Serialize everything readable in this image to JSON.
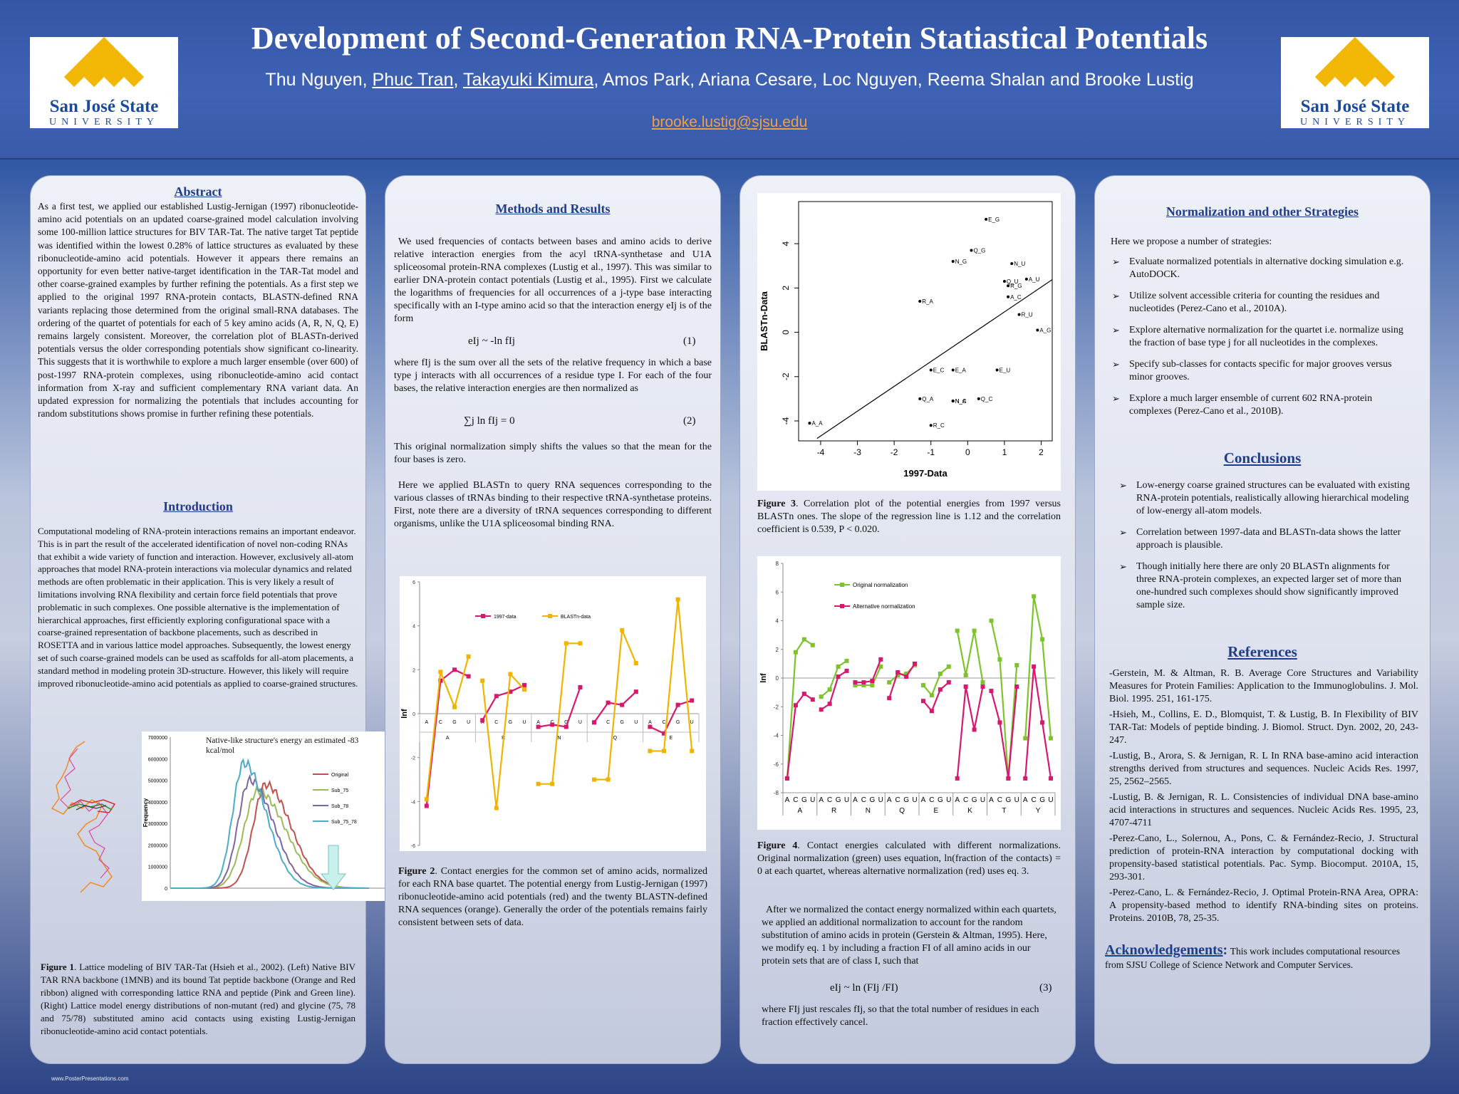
{
  "header": {
    "title": "Development of Second-Generation RNA-Protein Statiastical Potentials",
    "authors": [
      {
        "name": "Thu Nguyen",
        "underline": false
      },
      {
        "name": "Phuc Tran",
        "underline": true
      },
      {
        "name": "Takayuki Kimura",
        "underline": true
      },
      {
        "name": "Amos Park",
        "underline": false
      },
      {
        "name": "Ariana Cesare",
        "underline": false
      },
      {
        "name": "Loc Nguyen",
        "underline": false
      },
      {
        "name": "Reema Shalan and Brooke Lustig",
        "underline": false
      }
    ],
    "email": "brooke.lustig@sjsu.edu",
    "logo_name": "San José State",
    "logo_sub": "UNIVERSITY",
    "brand_color": "#1b4b98",
    "logo_gold": "#f2b705"
  },
  "abstract": {
    "heading": "Abstract",
    "text": "As a first test, we applied our established Lustig-Jernigan (1997) ribonucleotide-amino acid potentials on an updated coarse-grained model calculation involving some 100-million lattice structures for BIV TAR-Tat. The native target Tat peptide was identified within the lowest 0.28% of lattice structures as evaluated by these ribonucleotide-amino acid potentials. However it appears there remains an opportunity for even better native-target identification in the TAR-Tat model and other coarse-grained examples by further refining the potentials. As a first step we applied to the original 1997 RNA-protein contacts, BLASTN-defined RNA variants replacing those determined from the original small-RNA databases. The ordering of the quartet of potentials for each of 5 key amino acids (A, R, N, Q, E) remains largely consistent. Moreover, the correlation plot of BLASTn-derived potentials versus the older corresponding potentials show significant co-linearity. This suggests that it is worthwhile to explore a much larger ensemble (over 600) of post-1997 RNA-protein complexes, using ribonucleotide-amino acid contact information from X-ray and sufficient complementary RNA variant data. An updated expression for normalizing the potentials that includes accounting for random substitutions shows promise in further refining these potentials."
  },
  "introduction": {
    "heading": "Introduction",
    "text": "Computational modeling of RNA-protein interactions remains an important endeavor. This is in part the result of the accelerated identification of novel non-coding RNAs that exhibit a wide variety of function and interaction. However, exclusively all-atom approaches that model RNA-protein interactions via molecular dynamics and related methods are often problematic in their application. This is very likely a result of limitations involving RNA flexibility and certain force field potentials that prove problematic in such complexes. One possible alternative is the implementation of hierarchical approaches, first efficiently exploring configurational space with a coarse-grained representation of backbone placements, such as described in ROSETTA and in various lattice model approaches. Subsequently, the lowest energy set of such coarse-grained models can be used as scaffolds for all-atom placements, a standard method in modeling protein 3D-structure. However, this likely will require improved ribonucleotide-amino acid potentials as applied to coarse-grained structures."
  },
  "figure1": {
    "annotation": "Native-like structure's energy an estimated -83 kcal/mol",
    "ylabel": "Frequency",
    "yticks": [
      "7000000",
      "6000000",
      "5000000",
      "4000000",
      "3000000",
      "2000000",
      "1000000",
      "0"
    ],
    "legend": [
      "Original",
      "Sub_75",
      "Sub_78",
      "Sub_75_78"
    ],
    "legend_colors": [
      "#c0504d",
      "#9bbb59",
      "#8064a2",
      "#4bacc6"
    ],
    "caption_label": "Figure 1",
    "caption": ". Lattice modeling of BIV TAR-Tat (Hsieh et al., 2002). (Left) Native BIV TAR RNA backbone (1MNB) and its bound Tat peptide backbone (Orange and Red ribbon) aligned with corresponding lattice RNA and peptide (Pink and Green line). (Right) Lattice model energy distributions of non-mutant (red) and glycine (75, 78 and 75/78) substituted amino acid contacts using existing Lustig-Jernigan ribonucleotide-amino acid contact potentials."
  },
  "methods": {
    "heading": "Methods and Results",
    "p1": "We used frequencies of contacts between bases and amino acids to derive relative interaction energies from the acyl tRNA-synthetase and U1A spliceosomal protein-RNA complexes (Lustig et al., 1997). This was similar to earlier DNA-protein contact potentials (Lustig et al., 1995). First we calculate the logarithms of frequencies for all occurrences of a j-type base interacting specifically with an I-type amino acid so that the interaction energy eIj is of the form",
    "eq1": "eIj ~ -ln fIj",
    "eq1_num": "(1)",
    "p2": "where fIj is the sum over all the sets of the relative frequency in which a base type j interacts with all occurrences of a residue type I. For each of the four bases, the relative interaction energies are then normalized as",
    "eq2": "∑j ln fIj = 0",
    "eq2_num": "(2)",
    "p3": "This original normalization simply shifts the values so that the mean for the four bases is zero.",
    "p4": "Here we applied BLASTn to query RNA sequences corresponding to the various classes of tRNAs binding to their respective tRNA-synthetase proteins. First, note there are a diversity of tRNA sequences corresponding to different organisms, unlike the U1A spliceosomal binding RNA."
  },
  "figure2": {
    "caption_label": "Figure 2",
    "caption": ". Contact energies for the common set of amino acids, normalized for each RNA base quartet. The potential energy from Lustig-Jernigan (1997) ribonucleotide-amino acid potentials (red) and the twenty BLASTN-defined RNA sequences (orange). Generally the order of the potentials remains fairly consistent between sets of data."
  },
  "figure3": {
    "caption_label": "Figure 3",
    "caption": ". Correlation plot of the potential energies from 1997 versus BLASTn ones. The slope of the regression line is 1.12 and the correlation coefficient is 0.539, P < 0.020."
  },
  "figure4": {
    "caption_label": "Figure 4",
    "caption": ". Contact energies calculated with different normalizations. Original normalization (green) uses equation, ln(fraction of the contacts) = 0 at each quartet, whereas alternative normalization (red) uses eq. 3."
  },
  "methods2": {
    "p1": "After we normalized the contact energy normalized within each quartets, we applied an additional normalization to account for the random substitution of amino acids in protein (Gerstein & Altman, 1995). Here, we modify eq. 1 by including a fraction FI of all amino acids in our protein sets that are of class I, such that",
    "eq3": "eIj ~ ln (FIj /FI)",
    "eq3_num": "(3)",
    "p2": "where FIj just rescales fIj, so that the total number of residues in each fraction effectively cancel."
  },
  "normalization": {
    "heading": "Normalization and other Strategies",
    "intro": "Here we propose a number of strategies:",
    "items": [
      "Evaluate normalized potentials in alternative docking simulation e.g. AutoDOCK.",
      "Utilize solvent accessible criteria for counting the residues and nucleotides (Perez-Cano et al., 2010A).",
      "Explore alternative normalization for the quartet i.e. normalize using the fraction of base type j for all nucleotides in the complexes.",
      "Specify sub-classes for contacts specific for major grooves versus minor grooves.",
      "Explore a much larger ensemble of current 602 RNA-protein complexes (Perez-Cano et al., 2010B)."
    ]
  },
  "conclusions": {
    "heading": "Conclusions",
    "items": [
      "Low-energy coarse grained structures can be evaluated with existing RNA-protein potentials, realistically allowing hierarchical modeling of low-energy all-atom models.",
      "Correlation between 1997-data and BLASTn-data shows the latter approach is plausible.",
      "Though initially here there are only 20 BLASTn alignments for three RNA-protein complexes, an expected larger set of more than one-hundred such complexes should show significantly improved sample size."
    ]
  },
  "references": {
    "heading": "References",
    "items": [
      "-Gerstein, M. & Altman, R. B. Average Core Structures and Variability Measures for Protein Families: Application to the Immunoglobulins. J. Mol. Biol. 1995. 251, 161-175.",
      "-Hsieh, M., Collins, E. D., Blomquist, T. & Lustig, B. In Flexibility of BIV TAR-Tat: Models of peptide binding. J. Biomol. Struct. Dyn. 2002, 20, 243-247.",
      "-Lustig, B., Arora, S. & Jernigan, R. L In RNA base-amino acid interaction strengths derived from structures and sequences. Nucleic Acids Res. 1997, 25, 2562–2565.",
      "-Lustig, B. & Jernigan, R. L. Consistencies of individual DNA base-amino acid interactions in structures and sequences. Nucleic Acids Res. 1995, 23, 4707-4711",
      "-Perez-Cano, L., Solernou, A., Pons, C. & Fernández-Recio, J. Structural prediction of protein-RNA interaction by computational docking with propensity-based statistical potentials. Pac. Symp. Biocomput. 2010A, 15, 293-301.",
      "-Perez-Cano, L. & Fernández-Recio, J. Optimal Protein-RNA Area, OPRA: A propensity-based method to identify RNA-binding sites on proteins. Proteins. 2010B, 78, 25-35."
    ]
  },
  "acknowledgements": {
    "heading": "Acknowledgements",
    "colon": ":",
    "text": "This work includes computational resources from SJSU College of Science Network and Computer Services."
  },
  "footer": {
    "text": "www.PosterPresentations.com"
  },
  "chart_data": [
    {
      "id": "figure2",
      "type": "line",
      "ylabel": "lnf",
      "ylim": [
        -6,
        6
      ],
      "yticks": [
        6,
        4,
        2,
        0,
        -2,
        -4,
        -6
      ],
      "groups": [
        "A",
        "R",
        "N",
        "Q",
        "E"
      ],
      "bases": [
        "A",
        "C",
        "G",
        "U"
      ],
      "series": [
        {
          "name": "1997-data",
          "color": "#d6186e",
          "values": [
            [
              -4.2,
              1.5,
              2.0,
              1.7
            ],
            [
              -0.3,
              0.8,
              1.0,
              1.3
            ],
            [
              -0.6,
              -0.5,
              -0.6,
              1.2
            ],
            [
              -0.4,
              0.5,
              0.4,
              1.0
            ],
            [
              -0.6,
              -0.9,
              0.4,
              0.6
            ]
          ]
        },
        {
          "name": "BLASTn-data",
          "color": "#f0b400",
          "values": [
            [
              -3.9,
              1.9,
              0.3,
              2.6
            ],
            [
              1.5,
              -4.3,
              1.8,
              1.1
            ],
            [
              -3.2,
              -3.2,
              3.2,
              3.2
            ],
            [
              -3.0,
              -3.0,
              3.8,
              2.3
            ],
            [
              -1.7,
              -1.7,
              5.2,
              -1.7
            ]
          ]
        }
      ]
    },
    {
      "id": "figure3",
      "type": "scatter",
      "xlabel": "1997-Data",
      "ylabel": "BLASTn-Data",
      "xlim": [
        -4.6,
        2.3
      ],
      "ylim": [
        -4.9,
        5.9
      ],
      "xticks": [
        -4,
        -3,
        -2,
        -1,
        0,
        1,
        2
      ],
      "yticks": [
        -4,
        -2,
        0,
        2,
        4
      ],
      "regression": {
        "slope": 1.12,
        "intercept": -0.2
      },
      "points": [
        {
          "label": "E_G",
          "x": 0.5,
          "y": 5.1
        },
        {
          "label": "Q_G",
          "x": 0.1,
          "y": 3.7
        },
        {
          "label": "N_G",
          "x": -0.4,
          "y": 3.2
        },
        {
          "label": "N_U",
          "x": 1.2,
          "y": 3.1
        },
        {
          "label": "A_U",
          "x": 1.6,
          "y": 2.4
        },
        {
          "label": "Q_U",
          "x": 1.0,
          "y": 2.3
        },
        {
          "label": "R_G",
          "x": 1.1,
          "y": 2.1
        },
        {
          "label": "A_C",
          "x": 1.1,
          "y": 1.6
        },
        {
          "label": "R_A",
          "x": -1.3,
          "y": 1.4
        },
        {
          "label": "R_U",
          "x": 1.4,
          "y": 0.8
        },
        {
          "label": "A_G",
          "x": 1.9,
          "y": 0.1
        },
        {
          "label": "E_C",
          "x": -1.0,
          "y": -1.7
        },
        {
          "label": "E_A",
          "x": -0.4,
          "y": -1.7
        },
        {
          "label": "E_U",
          "x": 0.8,
          "y": -1.7
        },
        {
          "label": "Q_A",
          "x": -1.3,
          "y": -3.0
        },
        {
          "label": "N_A",
          "x": -0.4,
          "y": -3.1
        },
        {
          "label": "N_C",
          "x": -0.4,
          "y": -3.1
        },
        {
          "label": "Q_C",
          "x": 0.3,
          "y": -3.0
        },
        {
          "label": "R_C",
          "x": -1.0,
          "y": -4.2
        },
        {
          "label": "A_A",
          "x": -4.3,
          "y": -4.1
        }
      ]
    },
    {
      "id": "figure4",
      "type": "line",
      "ylabel": "lnf",
      "ylim": [
        -8,
        8
      ],
      "yticks": [
        8,
        6,
        4,
        2,
        0,
        -2,
        -4,
        -6,
        -8
      ],
      "groups": [
        "A",
        "R",
        "N",
        "Q",
        "E",
        "K",
        "T",
        "Y"
      ],
      "bases": [
        "A",
        "C",
        "G",
        "U"
      ],
      "series": [
        {
          "name": "Original normalization",
          "color": "#7cc42a",
          "values": [
            [
              -7.0,
              1.8,
              2.7,
              2.3
            ],
            [
              -1.3,
              -0.8,
              0.8,
              1.2
            ],
            [
              -0.5,
              -0.5,
              -0.5,
              0.8
            ],
            [
              -0.3,
              0.2,
              0.3,
              0.9
            ],
            [
              -0.5,
              -1.2,
              0.3,
              0.8
            ],
            [
              3.3,
              0.2,
              3.3,
              -0.3
            ],
            [
              4.0,
              1.3,
              -7.0,
              0.9
            ],
            [
              -4.2,
              5.7,
              2.7,
              -4.2
            ]
          ]
        },
        {
          "name": "Alternative normalization",
          "color": "#d6186e",
          "values": [
            [
              -7.0,
              -1.9,
              -1.1,
              -1.5
            ],
            [
              -2.2,
              -1.8,
              0.1,
              0.5
            ],
            [
              -0.3,
              -0.3,
              -0.2,
              1.3
            ],
            [
              -1.4,
              0.4,
              0.1,
              1.0
            ],
            [
              -1.6,
              -2.3,
              -0.8,
              -0.3
            ],
            [
              -7.0,
              -0.6,
              -3.6,
              -0.6
            ],
            [
              -0.9,
              -3.1,
              -7.0,
              -0.6
            ],
            [
              -7.0,
              0.8,
              -3.1,
              -7.0
            ]
          ]
        }
      ]
    },
    {
      "id": "figure1-right",
      "type": "line",
      "ylabel": "Frequency",
      "ylim": [
        0,
        7000000
      ],
      "series": [
        {
          "name": "Original",
          "color": "#c0504d",
          "peak": 4800000,
          "center": 0.48,
          "width": 0.09
        },
        {
          "name": "Sub_75",
          "color": "#9bbb59",
          "peak": 4500000,
          "center": 0.44,
          "width": 0.1
        },
        {
          "name": "Sub_78",
          "color": "#8064a2",
          "peak": 5000000,
          "center": 0.4,
          "width": 0.085
        },
        {
          "name": "Sub_75_78",
          "color": "#4bacc6",
          "peak": 5800000,
          "center": 0.37,
          "width": 0.08
        }
      ]
    }
  ]
}
